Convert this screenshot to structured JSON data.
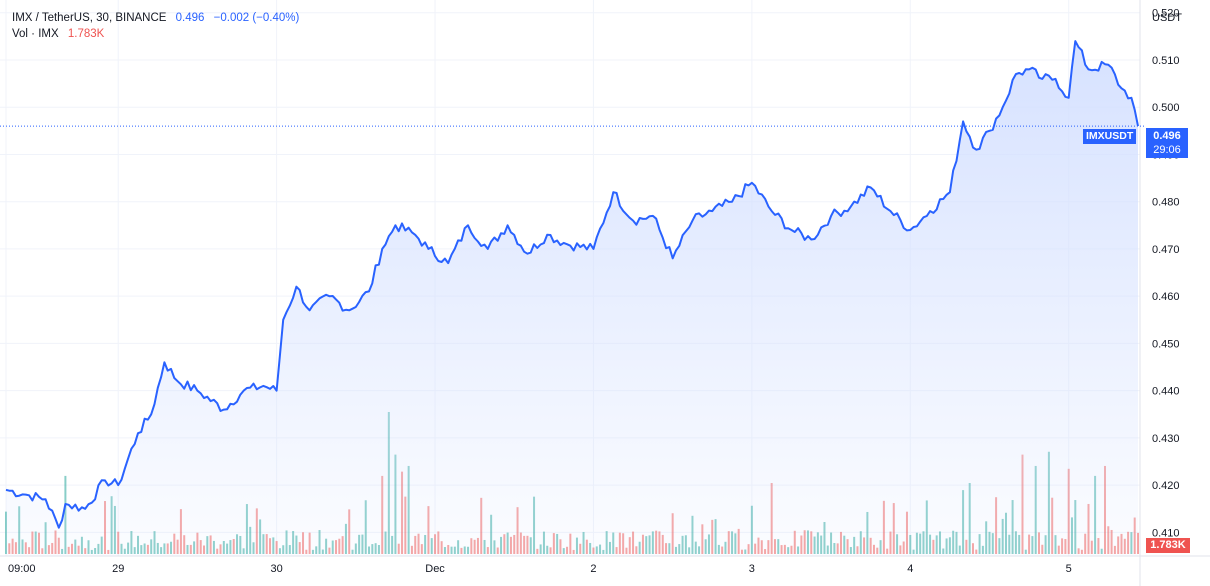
{
  "legend": {
    "symbol": "IMX / TetherUS, 30, BINANCE",
    "last": "0.496",
    "change": "−0.002 (−0.40%)",
    "volume_label": "Vol · IMX",
    "volume_value": "1.783K"
  },
  "axis": {
    "unit": "USDT",
    "price_ticks": [
      "0.520",
      "0.510",
      "0.500",
      "0.490",
      "0.480",
      "0.470",
      "0.460",
      "0.450",
      "0.440",
      "0.430",
      "0.420",
      "0.410"
    ],
    "time_ticks": [
      "09:00",
      "29",
      "30",
      "Dec",
      "2",
      "3",
      "4",
      "5"
    ]
  },
  "badges": {
    "symbol": "IMXUSDT",
    "price": "0.496",
    "countdown": "29:06",
    "volume": "1.783K"
  },
  "colors": {
    "line": "#2962ff",
    "fill": "#d4e0ff",
    "up": "#26a69a",
    "down": "#ef5350",
    "grid": "#f0f3fa",
    "badge": "#2962ff"
  },
  "chart_data": {
    "type": "area",
    "title": "IMX / TetherUS, 30, BINANCE",
    "ylabel": "USDT",
    "ylim": [
      0.405,
      0.521
    ],
    "x_labels": [
      {
        "index": 0,
        "label": "09:00"
      },
      {
        "index": 34,
        "label": "29"
      },
      {
        "index": 82,
        "label": "30"
      },
      {
        "index": 130,
        "label": "Dec"
      },
      {
        "index": 178,
        "label": "2"
      },
      {
        "index": 226,
        "label": "3"
      },
      {
        "index": 274,
        "label": "4"
      },
      {
        "index": 322,
        "label": "5"
      }
    ],
    "keypoints": [
      [
        0,
        0.419
      ],
      [
        6,
        0.418
      ],
      [
        12,
        0.417
      ],
      [
        16,
        0.411
      ],
      [
        18,
        0.416
      ],
      [
        24,
        0.415
      ],
      [
        30,
        0.421
      ],
      [
        34,
        0.42
      ],
      [
        40,
        0.431
      ],
      [
        44,
        0.435
      ],
      [
        48,
        0.446
      ],
      [
        52,
        0.442
      ],
      [
        58,
        0.44
      ],
      [
        66,
        0.436
      ],
      [
        72,
        0.44
      ],
      [
        78,
        0.441
      ],
      [
        82,
        0.44
      ],
      [
        84,
        0.455
      ],
      [
        88,
        0.462
      ],
      [
        92,
        0.457
      ],
      [
        98,
        0.46
      ],
      [
        104,
        0.457
      ],
      [
        110,
        0.461
      ],
      [
        114,
        0.47
      ],
      [
        118,
        0.475
      ],
      [
        124,
        0.473
      ],
      [
        128,
        0.47
      ],
      [
        134,
        0.467
      ],
      [
        140,
        0.475
      ],
      [
        146,
        0.47
      ],
      [
        152,
        0.475
      ],
      [
        158,
        0.469
      ],
      [
        164,
        0.473
      ],
      [
        170,
        0.471
      ],
      [
        178,
        0.47
      ],
      [
        184,
        0.482
      ],
      [
        190,
        0.476
      ],
      [
        196,
        0.477
      ],
      [
        202,
        0.468
      ],
      [
        208,
        0.476
      ],
      [
        214,
        0.478
      ],
      [
        220,
        0.48
      ],
      [
        226,
        0.484
      ],
      [
        232,
        0.478
      ],
      [
        238,
        0.474
      ],
      [
        244,
        0.472
      ],
      [
        250,
        0.477
      ],
      [
        256,
        0.479
      ],
      [
        262,
        0.483
      ],
      [
        268,
        0.478
      ],
      [
        274,
        0.474
      ],
      [
        280,
        0.478
      ],
      [
        286,
        0.482
      ],
      [
        290,
        0.497
      ],
      [
        294,
        0.491
      ],
      [
        298,
        0.495
      ],
      [
        302,
        0.5
      ],
      [
        306,
        0.507
      ],
      [
        310,
        0.508
      ],
      [
        314,
        0.506
      ],
      [
        318,
        0.506
      ],
      [
        322,
        0.502
      ],
      [
        324,
        0.514
      ],
      [
        328,
        0.508
      ],
      [
        334,
        0.509
      ],
      [
        338,
        0.504
      ],
      [
        341,
        0.502
      ],
      [
        343,
        0.496
      ]
    ],
    "volume": {
      "last": "1.783K",
      "spikes": [
        [
          18,
          0.55,
          "up"
        ],
        [
          114,
          0.55,
          "down"
        ],
        [
          116,
          1.0,
          "up"
        ],
        [
          118,
          0.7,
          "up"
        ],
        [
          120,
          0.58,
          "down"
        ],
        [
          122,
          0.62,
          "up"
        ],
        [
          232,
          0.5,
          "down"
        ],
        [
          290,
          0.45,
          "up"
        ],
        [
          292,
          0.5,
          "up"
        ],
        [
          300,
          0.4,
          "down"
        ],
        [
          305,
          0.38,
          "up"
        ],
        [
          308,
          0.7,
          "down"
        ],
        [
          312,
          0.62,
          "up"
        ],
        [
          316,
          0.72,
          "up"
        ],
        [
          322,
          0.6,
          "down"
        ],
        [
          324,
          0.38,
          "up"
        ],
        [
          330,
          0.55,
          "up"
        ],
        [
          333,
          0.62,
          "down"
        ],
        [
          347,
          0.2,
          "up"
        ]
      ]
    }
  }
}
